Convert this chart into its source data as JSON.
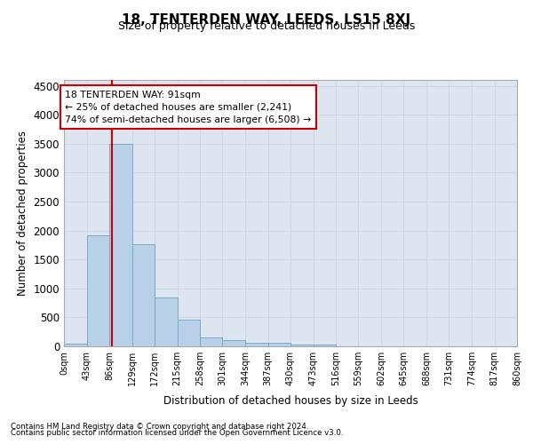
{
  "title": "18, TENTERDEN WAY, LEEDS, LS15 8XJ",
  "subtitle": "Size of property relative to detached houses in Leeds",
  "xlabel": "Distribution of detached houses by size in Leeds",
  "ylabel": "Number of detached properties",
  "footnote1": "Contains HM Land Registry data © Crown copyright and database right 2024.",
  "footnote2": "Contains public sector information licensed under the Open Government Licence v3.0.",
  "annotation_title": "18 TENTERDEN WAY: 91sqm",
  "annotation_line1": "← 25% of detached houses are smaller (2,241)",
  "annotation_line2": "74% of semi-detached houses are larger (6,508) →",
  "bar_color": "#b8d0e8",
  "bar_edge_color": "#7aaac8",
  "grid_color": "#d0d8e8",
  "background_color": "#dde6f0",
  "vline_x": 91,
  "vline_color": "#cc0000",
  "annotation_box_color": "#cc0000",
  "bin_edges": [
    0,
    43,
    86,
    129,
    172,
    215,
    258,
    301,
    344,
    387,
    430,
    473,
    516,
    559,
    602,
    645,
    688,
    731,
    774,
    817,
    860
  ],
  "bin_values": [
    50,
    1920,
    3490,
    1770,
    840,
    460,
    160,
    105,
    65,
    55,
    30,
    30,
    0,
    0,
    0,
    0,
    0,
    0,
    0,
    0
  ],
  "ylim": [
    0,
    4600
  ],
  "xlim": [
    0,
    860
  ],
  "yticks": [
    0,
    500,
    1000,
    1500,
    2000,
    2500,
    3000,
    3500,
    4000,
    4500
  ],
  "xtick_labels": [
    "0sqm",
    "43sqm",
    "86sqm",
    "129sqm",
    "172sqm",
    "215sqm",
    "258sqm",
    "301sqm",
    "344sqm",
    "387sqm",
    "430sqm",
    "473sqm",
    "516sqm",
    "559sqm",
    "602sqm",
    "645sqm",
    "688sqm",
    "731sqm",
    "774sqm",
    "817sqm",
    "860sqm"
  ]
}
